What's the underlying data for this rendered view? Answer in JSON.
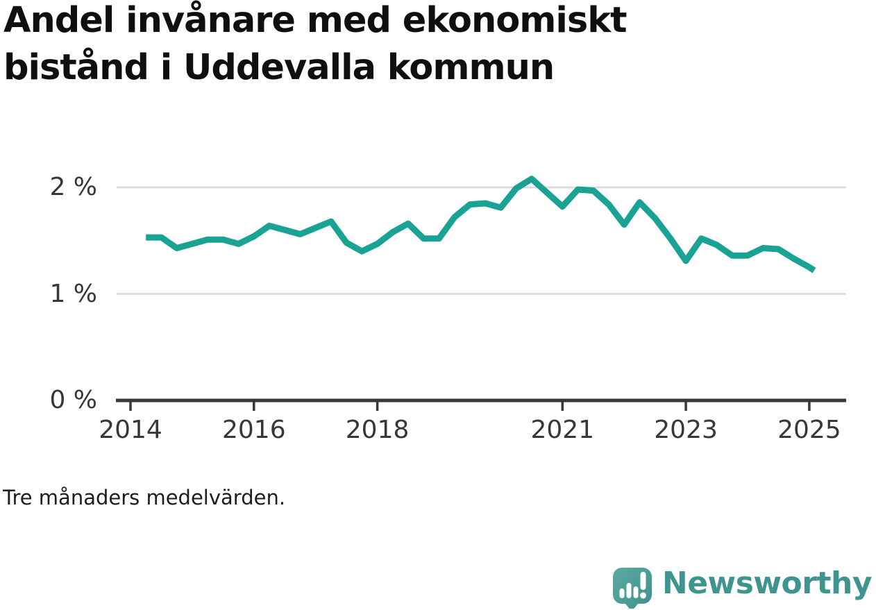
{
  "title": {
    "text": "Andel invånare med ekonomiskt bistånd i Uddevalla kommun"
  },
  "footer": {
    "note": "Tre månaders medelvärden."
  },
  "branding": {
    "name": "Newsworthy",
    "logo_icon": "newsworthy-speech-bubble-bar-chart-icon",
    "text_color": "#3E948E",
    "icon_color_top": "#5BABA5",
    "icon_color_bottom": "#3F8F8A"
  },
  "chart_data": {
    "type": "line",
    "title": "Andel invånare med ekonomiskt bistånd i Uddevalla kommun",
    "subtitle_note": "Tre månaders medelvärden.",
    "unit": "%",
    "xlabel": "",
    "ylabel": "",
    "grid": "horizontal",
    "legend_position": "none",
    "line_color": "#1AA294",
    "grid_color": "#DDDDDD",
    "axis_color": "#383838",
    "xlim": [
      2013.76,
      2025.6
    ],
    "ylim": [
      0,
      2.45
    ],
    "x_ticks": [
      {
        "value": 2014,
        "label": "2014"
      },
      {
        "value": 2016,
        "label": "2016"
      },
      {
        "value": 2018,
        "label": "2018"
      },
      {
        "value": 2021,
        "label": "2021"
      },
      {
        "value": 2023,
        "label": "2023"
      },
      {
        "value": 2025,
        "label": "2025"
      }
    ],
    "y_ticks": [
      {
        "value": 0,
        "label": "0 %"
      },
      {
        "value": 1,
        "label": "1 %"
      },
      {
        "value": 2,
        "label": "2 %"
      }
    ],
    "series": [
      {
        "name": "Andel invånare med ekonomiskt bistånd, Uddevalla kommun",
        "points": [
          {
            "t": 2014.25,
            "v": 1.53
          },
          {
            "t": 2014.5,
            "v": 1.53
          },
          {
            "t": 2014.75,
            "v": 1.43
          },
          {
            "t": 2015.0,
            "v": 1.47
          },
          {
            "t": 2015.25,
            "v": 1.51
          },
          {
            "t": 2015.5,
            "v": 1.51
          },
          {
            "t": 2015.75,
            "v": 1.47
          },
          {
            "t": 2016.0,
            "v": 1.54
          },
          {
            "t": 2016.25,
            "v": 1.64
          },
          {
            "t": 2016.5,
            "v": 1.6
          },
          {
            "t": 2016.75,
            "v": 1.56
          },
          {
            "t": 2017.0,
            "v": 1.62
          },
          {
            "t": 2017.25,
            "v": 1.68
          },
          {
            "t": 2017.5,
            "v": 1.48
          },
          {
            "t": 2017.75,
            "v": 1.4
          },
          {
            "t": 2018.0,
            "v": 1.47
          },
          {
            "t": 2018.25,
            "v": 1.58
          },
          {
            "t": 2018.5,
            "v": 1.66
          },
          {
            "t": 2018.75,
            "v": 1.52
          },
          {
            "t": 2019.0,
            "v": 1.52
          },
          {
            "t": 2019.25,
            "v": 1.72
          },
          {
            "t": 2019.5,
            "v": 1.84
          },
          {
            "t": 2019.75,
            "v": 1.85
          },
          {
            "t": 2020.0,
            "v": 1.81
          },
          {
            "t": 2020.25,
            "v": 1.99
          },
          {
            "t": 2020.5,
            "v": 2.08
          },
          {
            "t": 2020.75,
            "v": 1.95
          },
          {
            "t": 2021.0,
            "v": 1.82
          },
          {
            "t": 2021.25,
            "v": 1.98
          },
          {
            "t": 2021.5,
            "v": 1.97
          },
          {
            "t": 2021.75,
            "v": 1.84
          },
          {
            "t": 2022.0,
            "v": 1.65
          },
          {
            "t": 2022.25,
            "v": 1.86
          },
          {
            "t": 2022.5,
            "v": 1.71
          },
          {
            "t": 2022.75,
            "v": 1.52
          },
          {
            "t": 2023.0,
            "v": 1.31
          },
          {
            "t": 2023.25,
            "v": 1.52
          },
          {
            "t": 2023.5,
            "v": 1.46
          },
          {
            "t": 2023.75,
            "v": 1.36
          },
          {
            "t": 2024.0,
            "v": 1.36
          },
          {
            "t": 2024.25,
            "v": 1.43
          },
          {
            "t": 2024.5,
            "v": 1.42
          },
          {
            "t": 2024.75,
            "v": 1.33
          },
          {
            "t": 2025.0,
            "v": 1.25
          },
          {
            "t": 2025.08,
            "v": 1.22
          }
        ]
      }
    ]
  }
}
